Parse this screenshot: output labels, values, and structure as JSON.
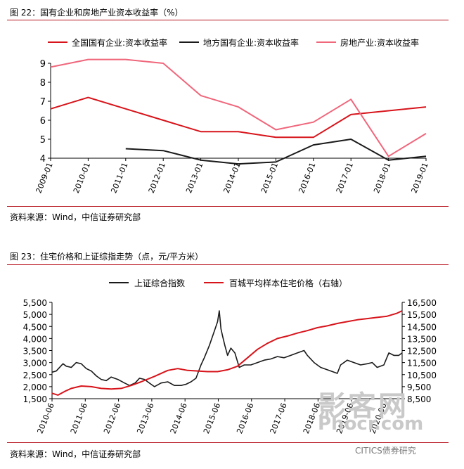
{
  "figure1": {
    "title": "图 22：国有企业和房地产业资本收益率（%）",
    "source": "资料来源：Wind，中信证券研究部"
  },
  "figure2": {
    "title": "图 23：住宅价格和上证综指走势（点，元/平方米）",
    "source": "资料来源：Wind，中信证券研究部"
  },
  "watermark": {
    "text1": "影客网",
    "text2": "Phocr.com",
    "text3": "CITICS债券研究"
  },
  "colors": {
    "red": "#d7141b",
    "black": "#1a1a1a",
    "pink": "#f0667b",
    "rule": "#b5121b"
  },
  "chart_data": [
    {
      "type": "line",
      "categories": [
        "2009-01",
        "2010-01",
        "2011-01",
        "2012-01",
        "2013-01",
        "2014-01",
        "2015-01",
        "2016-01",
        "2017-01",
        "2018-01",
        "2019-01"
      ],
      "ylim": [
        4,
        9
      ],
      "yticks": [
        4,
        5,
        6,
        7,
        8,
        9
      ],
      "legend_position": "top",
      "series": [
        {
          "name": "全国国有企业:资本收益率",
          "color": "#d7141b",
          "values": [
            6.6,
            7.2,
            6.6,
            6.0,
            5.4,
            5.4,
            5.1,
            5.1,
            6.3,
            6.5,
            6.7
          ]
        },
        {
          "name": "地方国有企业:资本收益率",
          "color": "#1a1a1a",
          "values": [
            null,
            null,
            4.5,
            4.4,
            3.9,
            3.7,
            3.8,
            4.7,
            5.0,
            3.9,
            4.1
          ]
        },
        {
          "name": "房地产业:资本收益率",
          "color": "#f0667b",
          "values": [
            8.8,
            9.2,
            9.2,
            9.0,
            7.3,
            6.7,
            5.5,
            5.9,
            7.1,
            4.1,
            5.3
          ]
        }
      ]
    },
    {
      "type": "line",
      "categories": [
        "2010-06",
        "2011-06",
        "2012-06",
        "2013-06",
        "2014-06",
        "2015-06",
        "2016-06",
        "2017-06",
        "2018-06",
        "2019-06",
        "2020-06"
      ],
      "ylim_left": [
        1500,
        5500
      ],
      "yticks_left": [
        1500,
        2000,
        2500,
        3000,
        3500,
        4000,
        4500,
        5000,
        5500
      ],
      "ylim_right": [
        8500,
        16500
      ],
      "yticks_right": [
        8500,
        9500,
        10500,
        11500,
        12500,
        13500,
        14500,
        15500,
        16500
      ],
      "legend_position": "top",
      "series": [
        {
          "name": "上证综合指数",
          "axis": "left",
          "color": "#1a1a1a",
          "x": [
            2010.42,
            2010.55,
            2010.75,
            2010.85,
            2011.0,
            2011.15,
            2011.3,
            2011.45,
            2011.6,
            2011.75,
            2011.9,
            2012.05,
            2012.2,
            2012.4,
            2012.6,
            2012.75,
            2012.92,
            2013.05,
            2013.2,
            2013.4,
            2013.5,
            2013.7,
            2013.9,
            2014.1,
            2014.3,
            2014.45,
            2014.6,
            2014.75,
            2014.9,
            2015.0,
            2015.15,
            2015.3,
            2015.4,
            2015.45,
            2015.5,
            2015.55,
            2015.62,
            2015.7,
            2015.8,
            2015.92,
            2016.05,
            2016.2,
            2016.4,
            2016.6,
            2016.8,
            2017.0,
            2017.2,
            2017.4,
            2017.6,
            2017.8,
            2018.0,
            2018.1,
            2018.3,
            2018.5,
            2018.7,
            2018.9,
            2019.0,
            2019.1,
            2019.3,
            2019.5,
            2019.7,
            2019.9,
            2020.05,
            2020.2,
            2020.4,
            2020.55,
            2020.7,
            2020.85,
            2020.95
          ],
          "values": [
            2600,
            2650,
            2950,
            2850,
            2800,
            3000,
            2950,
            2750,
            2650,
            2450,
            2300,
            2250,
            2400,
            2300,
            2150,
            2050,
            2150,
            2350,
            2300,
            2100,
            2000,
            2150,
            2200,
            2050,
            2050,
            2100,
            2200,
            2350,
            2900,
            3200,
            3700,
            4300,
            4700,
            5150,
            4400,
            4100,
            3700,
            3300,
            3600,
            3400,
            2800,
            2900,
            2900,
            3000,
            3100,
            3150,
            3250,
            3200,
            3300,
            3400,
            3500,
            3300,
            3000,
            2800,
            2700,
            2600,
            2550,
            2900,
            3100,
            3000,
            2900,
            2950,
            3000,
            2800,
            2900,
            3400,
            3300,
            3300,
            3400
          ]
        },
        {
          "name": "百城平均样本住宅价格（右轴）",
          "axis": "right",
          "color": "#d7141b",
          "x": [
            2010.42,
            2010.6,
            2010.8,
            2011.0,
            2011.3,
            2011.6,
            2011.9,
            2012.2,
            2012.5,
            2012.8,
            2013.1,
            2013.5,
            2013.9,
            2014.2,
            2014.5,
            2014.8,
            2015.1,
            2015.4,
            2015.7,
            2016.0,
            2016.3,
            2016.6,
            2016.9,
            2017.2,
            2017.5,
            2017.8,
            2018.1,
            2018.4,
            2018.7,
            2019.0,
            2019.3,
            2019.6,
            2019.9,
            2020.2,
            2020.5,
            2020.8,
            2020.95
          ],
          "values": [
            8950,
            8800,
            9100,
            9350,
            9550,
            9500,
            9350,
            9300,
            9350,
            9600,
            9900,
            10350,
            10850,
            11000,
            10850,
            10800,
            10750,
            10750,
            10900,
            11200,
            11900,
            12600,
            13100,
            13500,
            13700,
            13950,
            14150,
            14400,
            14550,
            14750,
            14900,
            15050,
            15150,
            15250,
            15350,
            15600,
            15800
          ]
        }
      ]
    }
  ]
}
